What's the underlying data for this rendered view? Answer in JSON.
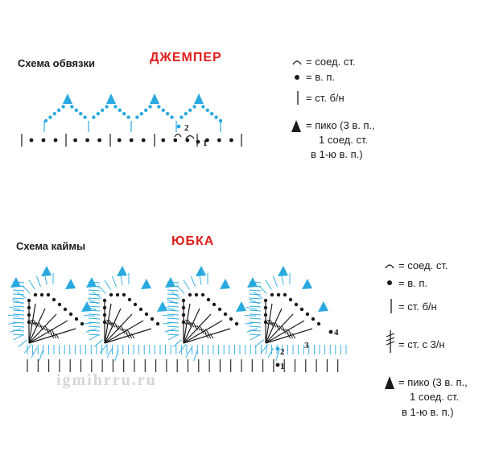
{
  "jumper": {
    "heading": "Схема  обвязки",
    "title": "ДЖЕМПЕР",
    "legend": {
      "slip": "= соед. ст.",
      "chain": "= в. п.",
      "sc": "= ст. б/н",
      "picot_1": "= пико (3 в. п.,",
      "picot_2": "1 соед. ст.",
      "picot_3": "в 1-ю в. п.)"
    },
    "marks": {
      "m1": "1",
      "m2": "2"
    }
  },
  "skirt": {
    "heading": "Схема каймы",
    "title": "ЮБКА",
    "legend": {
      "slip": "= соед. ст.",
      "chain": "= в. п.",
      "sc": "= ст. б/н",
      "dc3": "= ст. с 3/н",
      "picot_1": "= пико (3 в. п.,",
      "picot_2": "1 соед. ст.",
      "picot_3": "в 1-ю в. п.)"
    },
    "marks": {
      "m1": "1",
      "m2": "2",
      "m3": "3",
      "m4": "4"
    }
  },
  "watermark": "igmihrru.ru",
  "colors": {
    "title": "#e0201c",
    "blue": "#29a9df",
    "ink": "#1a1a1a"
  }
}
